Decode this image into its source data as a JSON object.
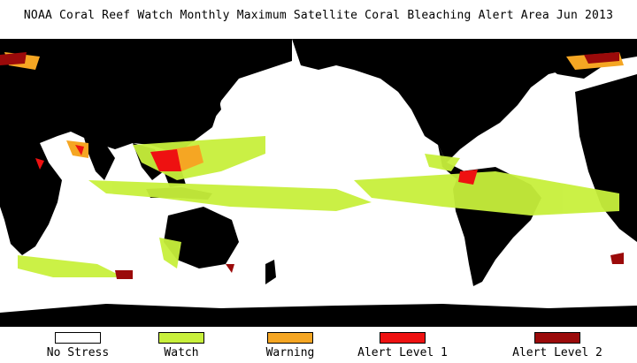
{
  "title": "NOAA Coral Reef Watch Monthly Maximum Satellite Coral Bleaching Alert Area   Jun 2013",
  "legend": [
    {
      "label": "No Stress",
      "color": "#ffffff"
    },
    {
      "label": "Watch",
      "color": "#c8f03c"
    },
    {
      "label": "Warning",
      "color": "#f5a623"
    },
    {
      "label": "Alert Level 1",
      "color": "#ee1111"
    },
    {
      "label": "Alert Level 2",
      "color": "#9b0a0a"
    }
  ],
  "colors": {
    "land": "#000000",
    "ocean": "#ffffff"
  }
}
